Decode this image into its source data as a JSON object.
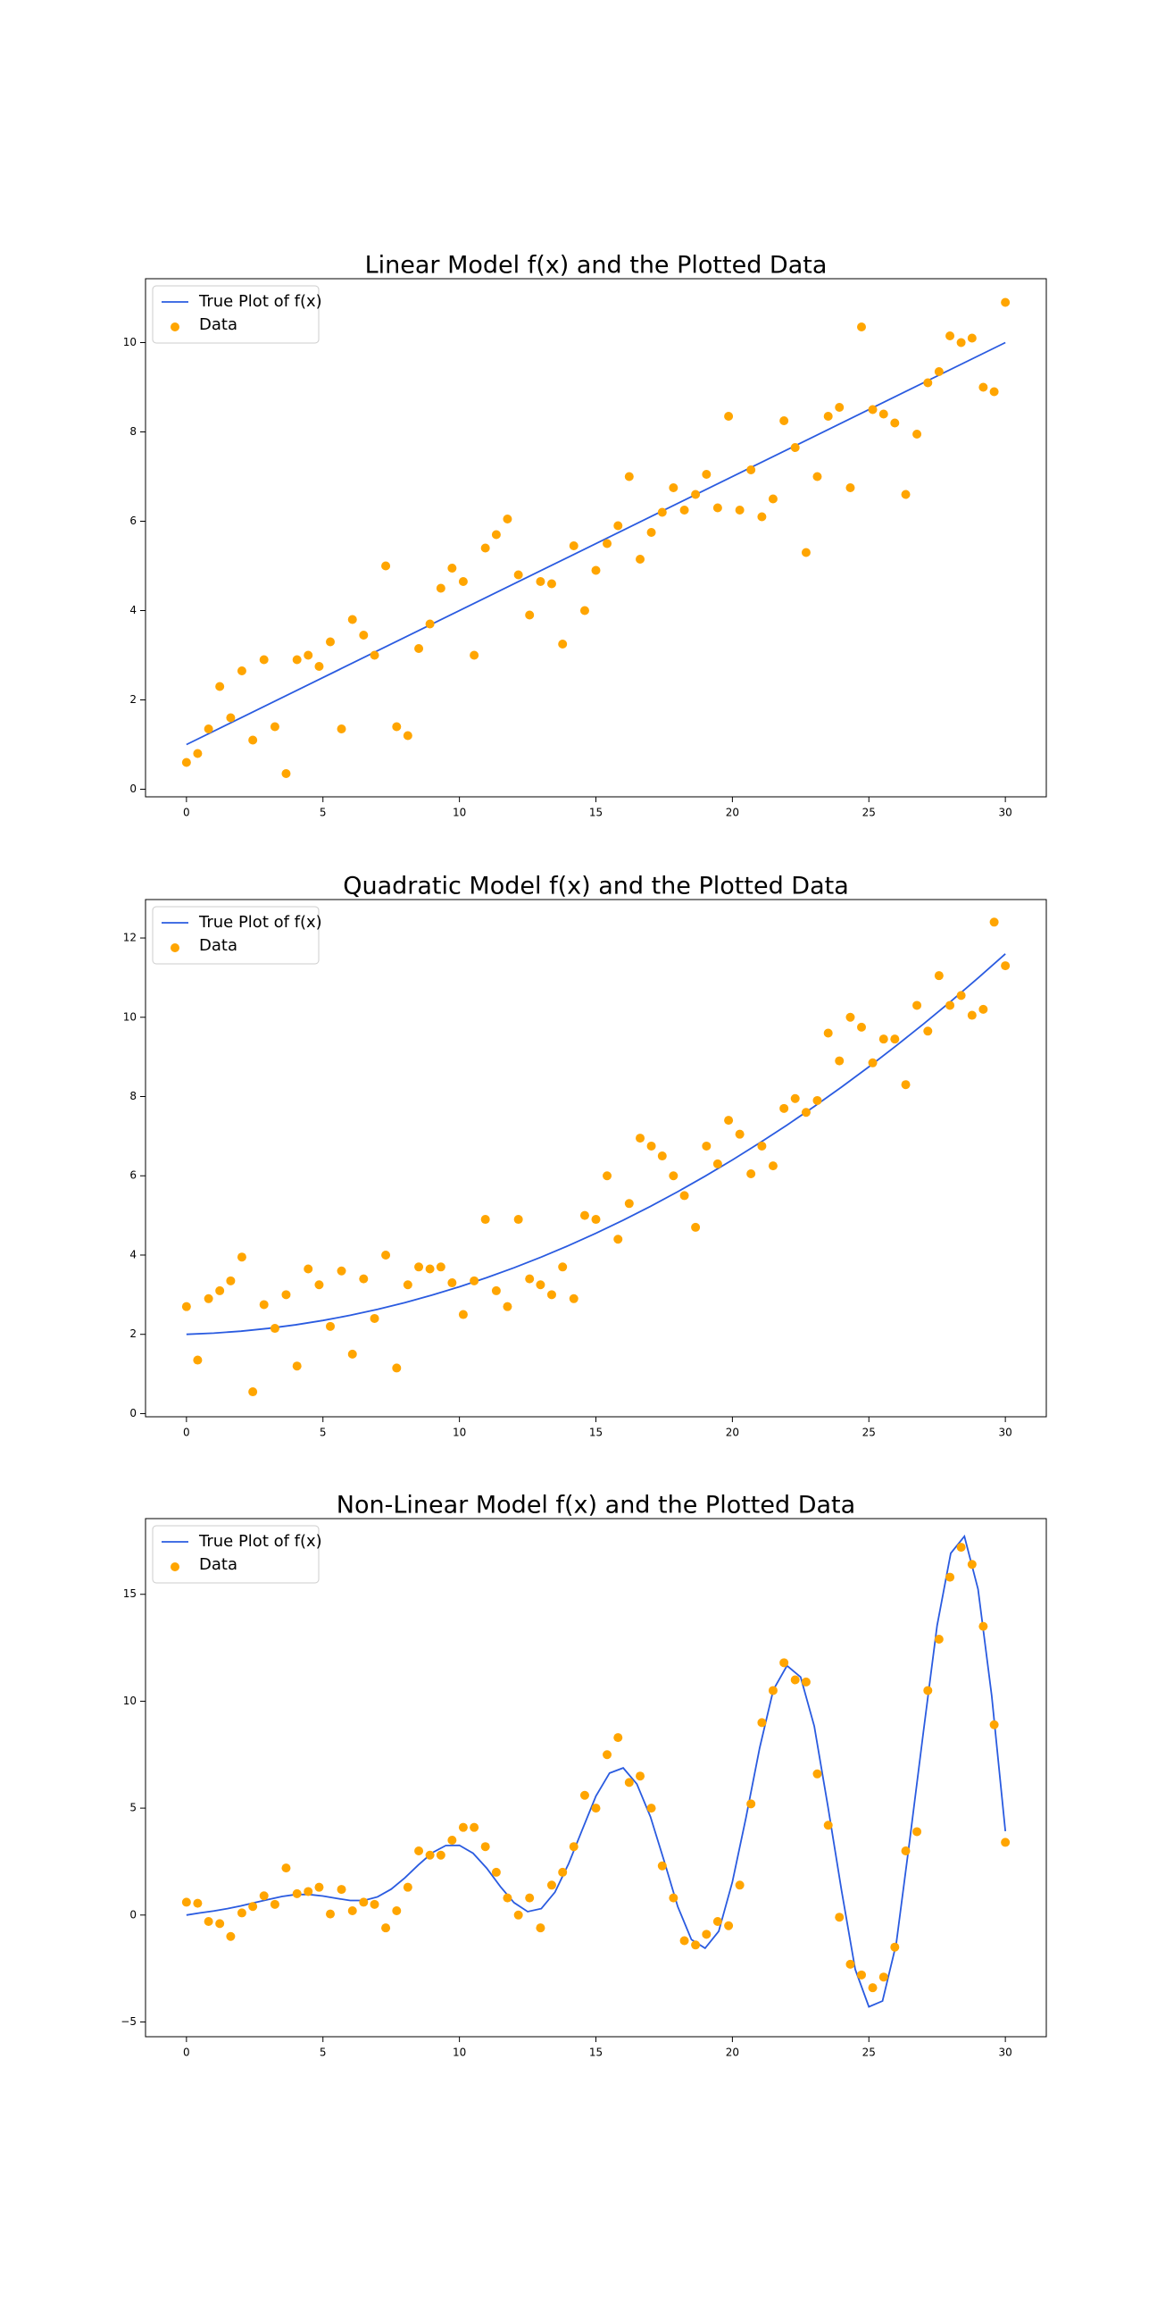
{
  "chart_data": [
    {
      "type": "combo",
      "title": "Linear Model f(x) and the Plotted Data",
      "legend": "upper left",
      "xlim": [
        -1.5,
        31.5
      ],
      "xticks": [
        0,
        5,
        10,
        15,
        20,
        25,
        30
      ],
      "ylim": [
        -0.17,
        11.43
      ],
      "yticks": [
        0,
        2,
        4,
        6,
        8,
        10
      ],
      "series": [
        {
          "name": "True Plot of f(x)",
          "type": "line",
          "color": "#2a5be0",
          "x": [
            0,
            30
          ],
          "values": [
            1,
            10
          ]
        },
        {
          "name": "Data",
          "type": "scatter",
          "color": "#ffa500",
          "x": [
            0,
            0.41,
            0.81,
            1.22,
            1.62,
            2.03,
            2.43,
            2.84,
            3.24,
            3.65,
            4.05,
            4.46,
            4.86,
            5.27,
            5.68,
            6.08,
            6.49,
            6.89,
            7.3,
            7.7,
            8.11,
            8.51,
            8.92,
            9.32,
            9.73,
            10.14,
            10.54,
            10.95,
            11.35,
            11.76,
            12.16,
            12.57,
            12.97,
            13.38,
            13.78,
            14.19,
            14.59,
            15,
            15.41,
            15.81,
            16.22,
            16.62,
            17.03,
            17.43,
            17.84,
            18.24,
            18.65,
            19.05,
            19.46,
            19.86,
            20.27,
            20.68,
            21.08,
            21.49,
            21.89,
            22.3,
            22.7,
            23.11,
            23.51,
            23.92,
            24.32,
            24.73,
            25.14,
            25.54,
            25.95,
            26.35,
            26.76,
            27.16,
            27.57,
            27.97,
            28.38,
            28.78,
            29.19,
            29.59,
            30
          ],
          "values": [
            0.6,
            0.8,
            1.35,
            2.3,
            1.6,
            2.65,
            1.1,
            2.9,
            1.4,
            0.35,
            2.9,
            3.0,
            2.75,
            3.3,
            1.35,
            3.8,
            3.45,
            3.0,
            5.0,
            1.4,
            1.2,
            3.15,
            3.7,
            4.5,
            4.95,
            4.65,
            3.0,
            5.4,
            5.7,
            6.05,
            4.8,
            3.9,
            4.65,
            4.6,
            3.25,
            5.45,
            4.0,
            4.9,
            5.5,
            5.9,
            7.0,
            5.15,
            5.75,
            6.2,
            6.75,
            6.25,
            6.6,
            7.05,
            6.3,
            8.35,
            6.25,
            7.15,
            6.1,
            6.5,
            8.25,
            7.65,
            5.3,
            7.0,
            8.35,
            8.55,
            6.75,
            10.35,
            8.5,
            8.4,
            8.2,
            6.6,
            7.95,
            9.1,
            9.35,
            10.15,
            10.0,
            10.1,
            9.0,
            8.9,
            10.9
          ]
        }
      ]
    },
    {
      "type": "combo",
      "title": "Quadratic Model f(x) and the Plotted Data",
      "legend": "upper left",
      "xlim": [
        -1.5,
        31.5
      ],
      "xticks": [
        0,
        5,
        10,
        15,
        20,
        25,
        30
      ],
      "ylim": [
        -0.08,
        12.97
      ],
      "yticks": [
        0,
        2,
        4,
        6,
        8,
        10,
        12
      ],
      "series": [
        {
          "name": "True Plot of f(x)",
          "type": "line",
          "color": "#2a5be0",
          "x": [
            0,
            1,
            2,
            3,
            4,
            5,
            6,
            7,
            8,
            9,
            10,
            11,
            12,
            13,
            14,
            15,
            16,
            17,
            18,
            19,
            20,
            21,
            22,
            23,
            24,
            25,
            26,
            27,
            28,
            29,
            30
          ],
          "values": [
            2,
            2.03,
            2.08,
            2.15,
            2.24,
            2.35,
            2.48,
            2.63,
            2.8,
            2.99,
            3.2,
            3.43,
            3.68,
            3.95,
            4.24,
            4.55,
            4.88,
            5.23,
            5.6,
            5.99,
            6.4,
            6.83,
            7.28,
            7.75,
            8.24,
            8.75,
            9.28,
            9.83,
            10.4,
            10.99,
            11.6
          ]
        },
        {
          "name": "Data",
          "type": "scatter",
          "color": "#ffa500",
          "x": [
            0,
            0.41,
            0.81,
            1.22,
            1.62,
            2.03,
            2.43,
            2.84,
            3.24,
            3.65,
            4.05,
            4.46,
            4.86,
            5.27,
            5.68,
            6.08,
            6.49,
            6.89,
            7.3,
            7.7,
            8.11,
            8.51,
            8.92,
            9.32,
            9.73,
            10.14,
            10.54,
            10.95,
            11.35,
            11.76,
            12.16,
            12.57,
            12.97,
            13.38,
            13.78,
            14.19,
            14.59,
            15,
            15.41,
            15.81,
            16.22,
            16.62,
            17.03,
            17.43,
            17.84,
            18.24,
            18.65,
            19.05,
            19.46,
            19.86,
            20.27,
            20.68,
            21.08,
            21.49,
            21.89,
            22.3,
            22.7,
            23.11,
            23.51,
            23.92,
            24.32,
            24.73,
            25.14,
            25.54,
            25.95,
            26.35,
            26.76,
            27.16,
            27.57,
            27.97,
            28.38,
            28.78,
            29.19,
            29.59,
            30
          ],
          "values": [
            2.7,
            1.35,
            2.9,
            3.1,
            3.35,
            3.95,
            0.55,
            2.75,
            2.15,
            3.0,
            1.2,
            3.65,
            3.25,
            2.2,
            3.6,
            1.5,
            3.4,
            2.4,
            4.0,
            1.15,
            3.25,
            3.7,
            3.65,
            3.7,
            3.3,
            2.5,
            3.35,
            4.9,
            3.1,
            2.7,
            4.9,
            3.4,
            3.25,
            3.0,
            3.7,
            2.9,
            5.0,
            4.9,
            6.0,
            4.4,
            5.3,
            6.95,
            6.75,
            6.5,
            6.0,
            5.5,
            4.7,
            6.75,
            6.3,
            7.4,
            7.05,
            6.05,
            6.75,
            6.25,
            7.7,
            7.95,
            7.6,
            7.9,
            9.6,
            8.9,
            10.0,
            9.75,
            8.85,
            9.45,
            9.45,
            8.3,
            10.3,
            9.65,
            11.05,
            10.3,
            10.55,
            10.05,
            10.2,
            12.4,
            11.3
          ]
        }
      ]
    },
    {
      "type": "combo",
      "title": "Non-Linear Model f(x) and the Plotted Data",
      "legend": "upper left",
      "xlim": [
        -1.5,
        31.5
      ],
      "xticks": [
        0,
        5,
        10,
        15,
        20,
        25,
        30
      ],
      "ylim": [
        -5.69,
        18.54
      ],
      "yticks": [
        {
          "value": -5,
          "label": "−5"
        },
        0,
        5,
        10,
        15
      ],
      "series": [
        {
          "name": "True Plot of f(x)",
          "type": "line",
          "color": "#2a5be0",
          "x": [
            0,
            0.5,
            1,
            1.5,
            2,
            2.5,
            3,
            3.5,
            4,
            4.5,
            5,
            5.5,
            6,
            6.5,
            7,
            7.5,
            8,
            8.5,
            9,
            9.5,
            10,
            10.5,
            11,
            11.5,
            12,
            12.5,
            13,
            13.5,
            14,
            14.5,
            15,
            15.5,
            16,
            16.5,
            17,
            17.5,
            18,
            18.5,
            19,
            19.5,
            20,
            20.5,
            21,
            21.5,
            22,
            22.5,
            23,
            23.5,
            24,
            24.5,
            25,
            25.5,
            26,
            26.5,
            27,
            27.5,
            28,
            28.5,
            29,
            29.5,
            30
          ],
          "values": [
            0,
            0.1,
            0.19,
            0.3,
            0.43,
            0.58,
            0.73,
            0.87,
            0.96,
            0.96,
            0.89,
            0.78,
            0.68,
            0.68,
            0.85,
            1.21,
            1.74,
            2.35,
            2.91,
            3.25,
            3.26,
            2.89,
            2.19,
            1.33,
            0.58,
            0.16,
            0.3,
            1.07,
            2.4,
            3.99,
            5.56,
            6.64,
            6.88,
            6.13,
            4.59,
            2.53,
            0.39,
            -1.15,
            -1.55,
            -0.76,
            1.55,
            4.57,
            7.82,
            10.53,
            11.66,
            11.13,
            8.83,
            5.08,
            1.14,
            -2.54,
            -4.29,
            -4.02,
            -1.36,
            3.53,
            8.59,
            13.54,
            16.92,
            17.71,
            15.24,
            10.26,
            3.92
          ]
        },
        {
          "name": "Data",
          "type": "scatter",
          "color": "#ffa500",
          "x": [
            0,
            0.41,
            0.81,
            1.22,
            1.62,
            2.03,
            2.43,
            2.84,
            3.24,
            3.65,
            4.05,
            4.46,
            4.86,
            5.27,
            5.68,
            6.08,
            6.49,
            6.89,
            7.3,
            7.7,
            8.11,
            8.51,
            8.92,
            9.32,
            9.73,
            10.14,
            10.54,
            10.95,
            11.35,
            11.76,
            12.16,
            12.57,
            12.97,
            13.38,
            13.78,
            14.19,
            14.59,
            15,
            15.41,
            15.81,
            16.22,
            16.62,
            17.03,
            17.43,
            17.84,
            18.24,
            18.65,
            19.05,
            19.46,
            19.86,
            20.27,
            20.68,
            21.08,
            21.49,
            21.89,
            22.3,
            22.7,
            23.11,
            23.51,
            23.92,
            24.32,
            24.73,
            25.14,
            25.54,
            25.95,
            26.35,
            26.76,
            27.16,
            27.57,
            27.97,
            28.38,
            28.78,
            29.19,
            29.59,
            30
          ],
          "values": [
            0.6,
            0.55,
            -0.3,
            -0.4,
            -1.0,
            0.1,
            0.4,
            0.9,
            0.5,
            2.2,
            1.0,
            1.1,
            1.3,
            0.05,
            1.2,
            0.2,
            0.6,
            0.5,
            -0.6,
            0.2,
            1.3,
            3.0,
            2.8,
            2.8,
            3.5,
            4.1,
            4.1,
            3.2,
            2.0,
            0.8,
            0.0,
            0.8,
            -0.6,
            1.4,
            2.0,
            3.2,
            5.6,
            5.0,
            7.5,
            8.3,
            6.2,
            6.5,
            5.0,
            2.3,
            0.8,
            -1.2,
            -1.4,
            -0.9,
            -0.3,
            -0.5,
            1.4,
            5.2,
            9.0,
            10.5,
            11.8,
            11.0,
            10.9,
            6.6,
            4.2,
            -0.1,
            -2.3,
            -2.8,
            -3.4,
            -2.9,
            -1.5,
            3.0,
            3.9,
            10.5,
            12.9,
            15.8,
            17.2,
            16.4,
            13.5,
            8.9,
            3.4
          ]
        }
      ]
    }
  ]
}
